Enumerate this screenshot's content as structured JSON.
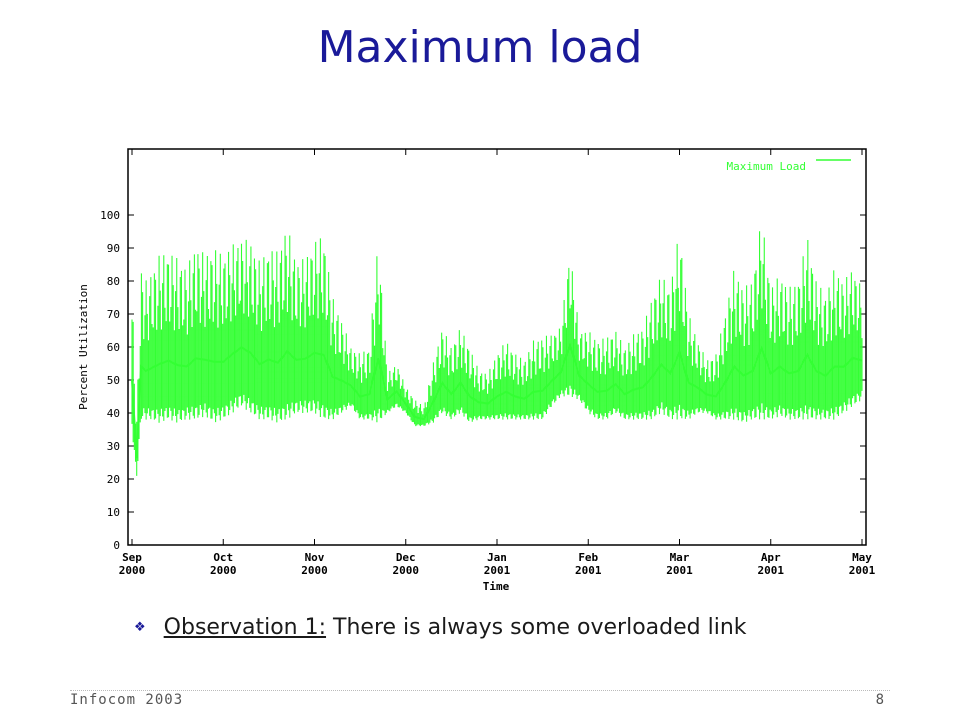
{
  "slide": {
    "title": "Maximum load",
    "observation_label": "Observation 1:",
    "observation_text": " There is always some overloaded link",
    "footer_left": "Infocom 2003",
    "footer_right": "8",
    "bullet_icon": "diamond-bullet-icon"
  },
  "chart_data": {
    "type": "line",
    "title": "",
    "xlabel": "Time",
    "ylabel": "Percent Utilization",
    "ylim": [
      0,
      120
    ],
    "yticks": [
      0,
      10,
      20,
      30,
      40,
      50,
      60,
      70,
      80,
      90,
      100
    ],
    "grid": false,
    "legend_placement": "top-right",
    "series_color": "#33ff33",
    "x_tick_labels": [
      [
        "Sep",
        "2000"
      ],
      [
        "Oct",
        "2000"
      ],
      [
        "Nov",
        "2000"
      ],
      [
        "Dec",
        "2000"
      ],
      [
        "Jan",
        "2001"
      ],
      [
        "Feb",
        "2001"
      ],
      [
        "Mar",
        "2001"
      ],
      [
        "Apr",
        "2001"
      ],
      [
        "May",
        "2001"
      ]
    ],
    "series": [
      {
        "name": "Maximum Load",
        "x_month_index": [
          0.0,
          0.05,
          0.1,
          0.15,
          0.2,
          0.3,
          0.4,
          0.5,
          0.6,
          0.7,
          0.8,
          0.9,
          1.0,
          1.1,
          1.2,
          1.3,
          1.4,
          1.5,
          1.6,
          1.7,
          1.8,
          1.9,
          2.0,
          2.1,
          2.2,
          2.3,
          2.4,
          2.5,
          2.6,
          2.7,
          2.8,
          2.9,
          3.0,
          3.1,
          3.2,
          3.3,
          3.4,
          3.5,
          3.6,
          3.7,
          3.8,
          3.9,
          4.0,
          4.1,
          4.2,
          4.3,
          4.4,
          4.5,
          4.6,
          4.7,
          4.8,
          4.9,
          5.0,
          5.1,
          5.2,
          5.3,
          5.4,
          5.5,
          5.6,
          5.7,
          5.8,
          5.9,
          6.0,
          6.1,
          6.2,
          6.3,
          6.4,
          6.5,
          6.6,
          6.7,
          6.8,
          6.9,
          7.0,
          7.1,
          7.2,
          7.3,
          7.4,
          7.5,
          7.6,
          7.7,
          7.8,
          7.9,
          8.0
        ],
        "max_values": [
          78,
          38,
          84,
          80,
          82,
          88,
          89,
          87,
          84,
          91,
          88,
          90,
          88,
          91,
          93,
          92,
          86,
          90,
          89,
          97,
          86,
          87,
          92,
          94,
          75,
          68,
          60,
          58,
          60,
          93,
          52,
          55,
          48,
          44,
          42,
          55,
          66,
          60,
          66,
          60,
          53,
          52,
          58,
          62,
          58,
          56,
          62,
          63,
          64,
          66,
          90,
          65,
          65,
          62,
          63,
          65,
          60,
          64,
          66,
          75,
          82,
          78,
          96,
          70,
          62,
          56,
          58,
          70,
          84,
          78,
          80,
          100,
          78,
          82,
          78,
          80,
          94,
          80,
          76,
          84,
          80,
          84,
          78
        ],
        "min_values": [
          35,
          20,
          38,
          38,
          38,
          37,
          38,
          37,
          38,
          38,
          39,
          37,
          38,
          40,
          42,
          40,
          38,
          38,
          37,
          38,
          40,
          40,
          40,
          38,
          38,
          40,
          42,
          38,
          38,
          37,
          40,
          42,
          40,
          36,
          36,
          37,
          40,
          38,
          40,
          37,
          38,
          38,
          38,
          38,
          38,
          38,
          38,
          38,
          42,
          45,
          45,
          44,
          40,
          38,
          38,
          40,
          38,
          38,
          38,
          38,
          40,
          38,
          38,
          38,
          40,
          40,
          38,
          38,
          38,
          37,
          38,
          38,
          38,
          39,
          38,
          38,
          38,
          38,
          38,
          38,
          40,
          42,
          44
        ]
      }
    ]
  }
}
